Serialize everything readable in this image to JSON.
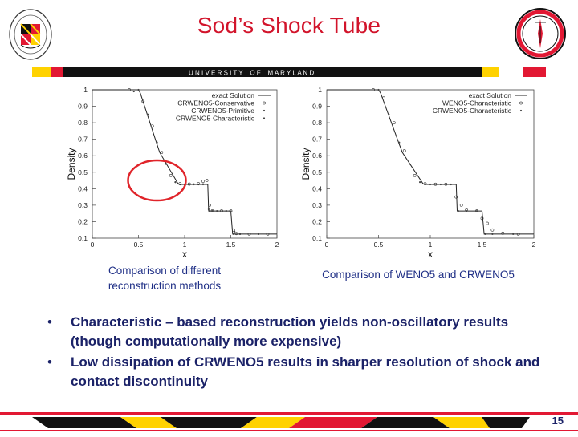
{
  "slide": {
    "title": "Sod’s Shock Tube",
    "banner_text": "U N I V E R S I T Y    O F    M A R Y L A N D",
    "page_number": "15",
    "colors": {
      "title": "#d2142b",
      "text": "#1b2268",
      "caption": "#1f2f86",
      "umd_red": "#e21833",
      "umd_gold": "#ffd200",
      "highlight": "#e0242a"
    }
  },
  "logos": {
    "left": {
      "icon": "university-seal-icon"
    },
    "right": {
      "icon": "research-center-seal-icon"
    }
  },
  "captions": {
    "left": "Comparison of different reconstruction methods",
    "right": "Comparison of WENO5 and CRWENO5"
  },
  "bullets": [
    "Characteristic – based reconstruction yields non-oscillatory results (though computationally more expensive)",
    "Low dissipation of CRWENO5 results in sharper resolution of shock and contact discontinuity"
  ],
  "chart_data": [
    {
      "type": "line",
      "xlabel": "x",
      "ylabel": "Density",
      "xlim": [
        0,
        2
      ],
      "ylim": [
        0.1,
        1
      ],
      "xticks": [
        "0",
        "0.5",
        "1",
        "1.5",
        "2"
      ],
      "yticks": [
        "0.1",
        "0.2",
        "0.3",
        "0.4",
        "0.5",
        "0.6",
        "0.7",
        "0.8",
        "0.9",
        "1"
      ],
      "legend_position": "top-right",
      "grid": false,
      "highlight_ellipse": {
        "center_x": 0.7,
        "center_y": 0.45,
        "shape": "ellipse"
      },
      "series": [
        {
          "name": "exact Solution",
          "style": "solid",
          "x": [
            0,
            0.5,
            0.52,
            0.7,
            0.73,
            0.93,
            0.95,
            1.0,
            1.25,
            1.26,
            1.5,
            1.52,
            1.6,
            2
          ],
          "y": [
            1,
            1,
            0.98,
            0.67,
            0.62,
            0.43,
            0.426,
            0.426,
            0.426,
            0.265,
            0.265,
            0.125,
            0.125,
            0.125
          ]
        },
        {
          "name": "CRWENO5-Conservative",
          "style": "markers",
          "marker": "c",
          "x": [
            0.4,
            0.55,
            0.65,
            0.75,
            0.85,
            0.95,
            1.05,
            1.15,
            1.2,
            1.24,
            1.27,
            1.3,
            1.4,
            1.5,
            1.53,
            1.56,
            1.7,
            1.9
          ],
          "y": [
            1,
            0.93,
            0.78,
            0.62,
            0.48,
            0.43,
            0.428,
            0.43,
            0.445,
            0.45,
            0.3,
            0.265,
            0.265,
            0.265,
            0.15,
            0.128,
            0.125,
            0.125
          ]
        },
        {
          "name": "CRWENO5-Primitive",
          "style": "markers",
          "marker": "dot",
          "x": [
            0.45,
            0.6,
            0.7,
            0.8,
            0.9,
            1.0,
            1.1,
            1.2,
            1.26,
            1.3,
            1.45,
            1.5,
            1.54,
            1.6,
            1.8
          ],
          "y": [
            0.99,
            0.85,
            0.68,
            0.55,
            0.44,
            0.426,
            0.427,
            0.428,
            0.275,
            0.265,
            0.265,
            0.263,
            0.14,
            0.125,
            0.125
          ]
        },
        {
          "name": "CRWENO5-Characteristic",
          "style": "markers",
          "marker": "dot",
          "x": [
            0.5,
            0.6,
            0.7,
            0.8,
            0.9,
            1.0,
            1.1,
            1.2,
            1.27,
            1.35,
            1.45,
            1.53,
            1.6,
            1.8
          ],
          "y": [
            1,
            0.85,
            0.68,
            0.55,
            0.44,
            0.426,
            0.426,
            0.426,
            0.265,
            0.265,
            0.265,
            0.125,
            0.125,
            0.125
          ]
        }
      ]
    },
    {
      "type": "line",
      "xlabel": "x",
      "ylabel": "Density",
      "xlim": [
        0,
        2
      ],
      "ylim": [
        0.1,
        1
      ],
      "xticks": [
        "0",
        "0.5",
        "1",
        "1.5",
        "2"
      ],
      "yticks": [
        "0.1",
        "0.2",
        "0.3",
        "0.4",
        "0.5",
        "0.6",
        "0.7",
        "0.8",
        "0.9",
        "1"
      ],
      "legend_position": "top-right",
      "grid": false,
      "series": [
        {
          "name": "exact Solution",
          "style": "solid",
          "x": [
            0,
            0.5,
            0.52,
            0.7,
            0.73,
            0.93,
            0.95,
            1.0,
            1.25,
            1.26,
            1.5,
            1.52,
            1.6,
            2
          ],
          "y": [
            1,
            1,
            0.98,
            0.67,
            0.62,
            0.43,
            0.426,
            0.426,
            0.426,
            0.265,
            0.265,
            0.125,
            0.125,
            0.125
          ]
        },
        {
          "name": "WENO5-Characteristic",
          "style": "markers",
          "marker": "c",
          "x": [
            0.45,
            0.55,
            0.65,
            0.75,
            0.85,
            0.95,
            1.05,
            1.15,
            1.25,
            1.3,
            1.35,
            1.45,
            1.5,
            1.55,
            1.6,
            1.7,
            1.85
          ],
          "y": [
            1,
            0.95,
            0.8,
            0.63,
            0.48,
            0.43,
            0.427,
            0.427,
            0.35,
            0.3,
            0.27,
            0.265,
            0.22,
            0.19,
            0.15,
            0.13,
            0.125
          ]
        },
        {
          "name": "CRWENO5-Characteristic",
          "style": "markers",
          "marker": "dot",
          "x": [
            0.5,
            0.6,
            0.7,
            0.8,
            0.9,
            1.0,
            1.1,
            1.2,
            1.27,
            1.35,
            1.45,
            1.53,
            1.6,
            1.8
          ],
          "y": [
            1,
            0.85,
            0.68,
            0.55,
            0.44,
            0.426,
            0.426,
            0.426,
            0.265,
            0.265,
            0.265,
            0.125,
            0.125,
            0.125
          ]
        }
      ]
    }
  ]
}
